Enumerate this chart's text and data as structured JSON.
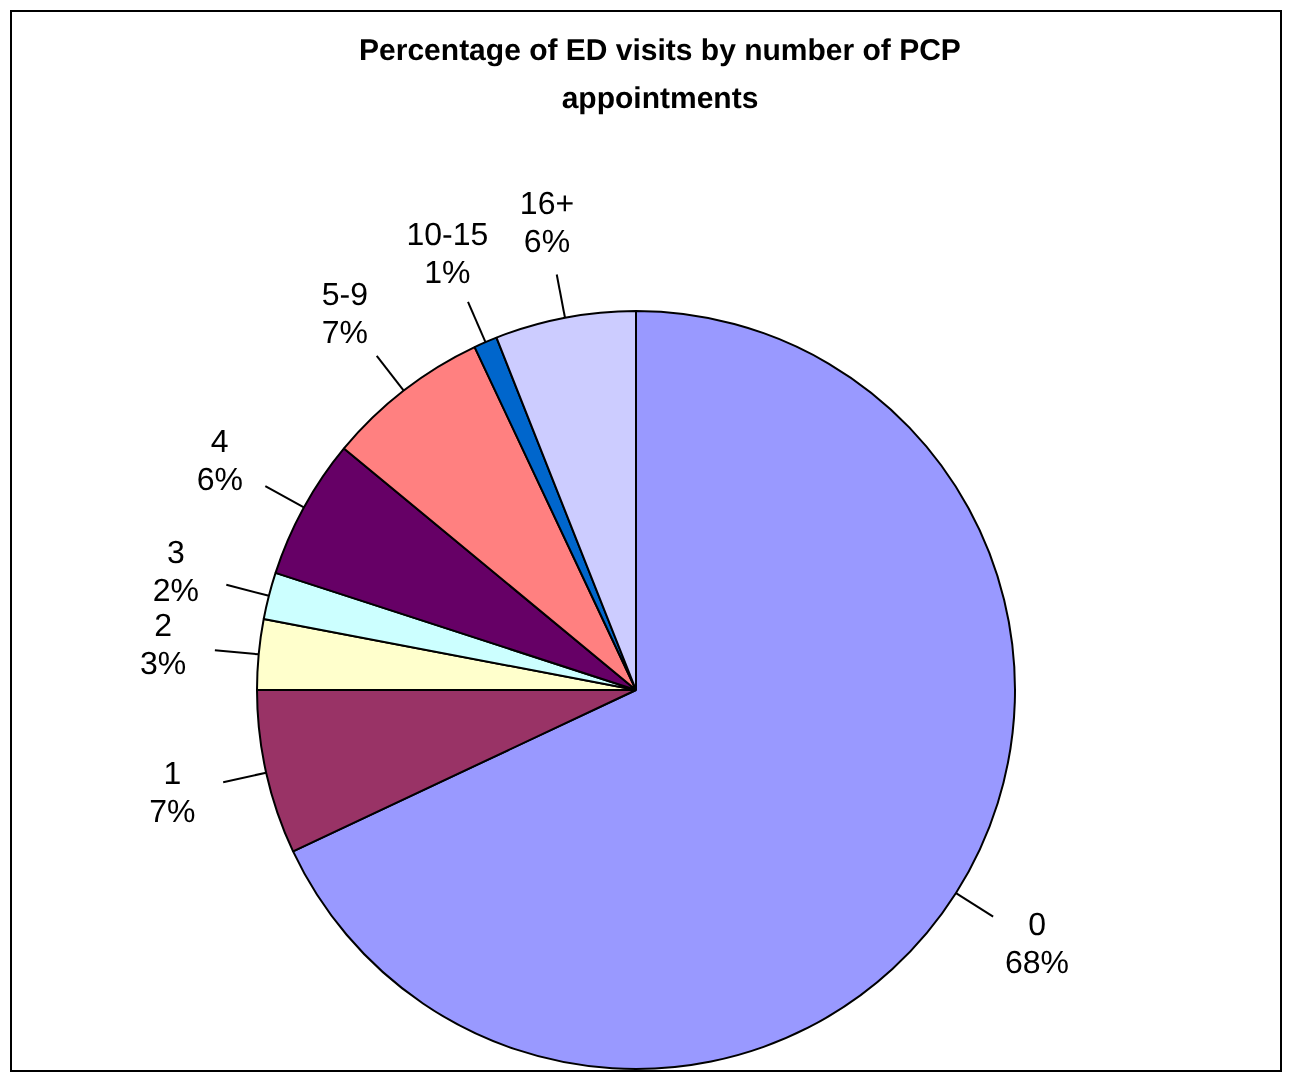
{
  "chart_data": {
    "type": "pie",
    "title": "Percentage of ED visits by number of PCP appointments",
    "categories": [
      "0",
      "1",
      "2",
      "3",
      "4",
      "5-9",
      "10-15",
      "16+"
    ],
    "values": [
      68,
      7,
      3,
      2,
      6,
      7,
      1,
      6
    ],
    "colors": [
      "#9999ff",
      "#993366",
      "#ffffcc",
      "#ccffff",
      "#660066",
      "#ff8080",
      "#0066cc",
      "#ccccff"
    ],
    "value_labels": [
      "68%",
      "7%",
      "3%",
      "2%",
      "6%",
      "7%",
      "1%",
      "6%"
    ],
    "data_labels": true,
    "legend": false
  }
}
